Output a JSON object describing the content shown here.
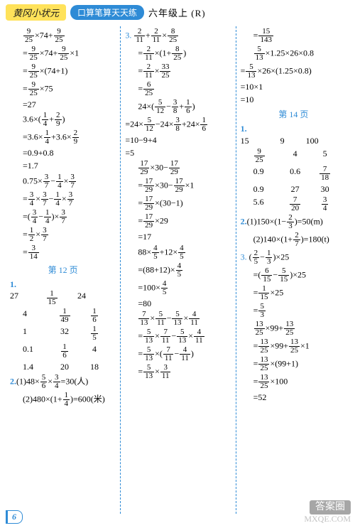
{
  "header": {
    "brand": "黄冈小状元",
    "pill": "口算笔算天天练",
    "grade": "六年级上 (R)"
  },
  "footer": {
    "page": "6"
  },
  "watermark": {
    "line1": "答案圈",
    "line2": "MXQE.COM"
  },
  "pages": {
    "p12": "第 12 页",
    "p14": "第 14 页"
  },
  "col1": {
    "l1a": "×74+",
    "l2a": "×74+",
    "l2b": "×1",
    "l3a": "×(74+1)",
    "l4a": "×75",
    "l5": "=27",
    "l6a": "3.6×(",
    "l6b": "+",
    "l6c": ")",
    "l7a": "=3.6×",
    "l7b": "+3.6×",
    "l8": "=0.9+0.8",
    "l9": "=1.7",
    "l10a": "0.75×",
    "l10b": "−",
    "l10c": "×",
    "l11a": "=",
    "l11b": "×",
    "l11c": "−",
    "l11d": "×",
    "l12a": "=(",
    "l12b": "−",
    "l12c": ")×",
    "l13a": "=",
    "l13b": "×",
    "l14": "=",
    "t1": {
      "a": "27",
      "b": "",
      "c": "24"
    },
    "t2": {
      "a": "4",
      "b": "",
      "c": ""
    },
    "t3": {
      "a": "1",
      "b": "32",
      "c": ""
    },
    "t4": {
      "a": "0.1",
      "b": "",
      "c": "4"
    },
    "t5": {
      "a": "1.4",
      "b": "20",
      "c": "18"
    },
    "q2a_pre": "(1)48×",
    "q2a_mid": "×",
    "q2a_post": "=30(人)",
    "q2b_pre": "(2)480×(1+",
    "q2b_post": ")=600(米)"
  },
  "col2": {
    "l1a": "+",
    "l1b": "×",
    "l2a": "=",
    "l2b": "×(1+",
    "l2c": ")",
    "l3a": "=",
    "l3b": "×",
    "l4": "=",
    "l5a": "24×(",
    "l5b": "−",
    "l5c": "+",
    "l5d": ")",
    "l6a": "=24×",
    "l6b": "−24×",
    "l6c": "+24×",
    "l7": "=10−9+4",
    "l8": "=5",
    "l9a": "×30−",
    "l10a": "=",
    "l10b": "×30−",
    "l10c": "×1",
    "l11a": "=",
    "l11b": "×(30−1)",
    "l12a": "=",
    "l12b": "×29",
    "l13": "=17",
    "l14a": "88×",
    "l14b": "+12×",
    "l15a": "=(88+12)×",
    "l16a": "=100×",
    "l17": "=80",
    "l18a": "×",
    "l18b": "−",
    "l18c": "×",
    "l19a": "=",
    "l19b": "×",
    "l19c": "−",
    "l19d": "×",
    "l20a": "=",
    "l20b": "×(",
    "l20c": "−",
    "l20d": ")",
    "l21a": "=",
    "l21b": "×"
  },
  "col3": {
    "l1": "=",
    "l2a": "×1.25×26×0.8",
    "l3a": "=",
    "l3b": "×26×(1.25×0.8)",
    "l4": "=10×1",
    "l5": "=10",
    "t1": {
      "a": "15",
      "b": "9",
      "c": "100"
    },
    "t2": {
      "a": "",
      "b": "4",
      "c": "5"
    },
    "t3": {
      "a": "0.9",
      "b": "0.6",
      "c": ""
    },
    "t4": {
      "a": "0.9",
      "b": "27",
      "c": "30"
    },
    "t5": {
      "a": "5.6",
      "b": "",
      "c": ""
    },
    "q2a_pre": "(1)150×(1−",
    "q2a_post": ")=50(m)",
    "q2b_pre": "(2)140×(1+",
    "q2b_post": ")=180(t)",
    "l6a": "(",
    "l6b": "−",
    "l6c": ")×25",
    "l7a": "=(",
    "l7b": "−",
    "l7c": ")×25",
    "l8a": "=",
    "l8b": "×25",
    "l9": "=",
    "l10a": "×99+",
    "l11a": "=",
    "l11b": "×99+",
    "l11c": "×1",
    "l12a": "=",
    "l12b": "×(99+1)",
    "l13a": "=",
    "l13b": "×100",
    "l14": "=52"
  },
  "fracs": {
    "9_25": {
      "n": "9",
      "d": "25"
    },
    "1_4": {
      "n": "1",
      "d": "4"
    },
    "2_9": {
      "n": "2",
      "d": "9"
    },
    "3_7": {
      "n": "3",
      "d": "7"
    },
    "3_4": {
      "n": "3",
      "d": "4"
    },
    "1_2": {
      "n": "1",
      "d": "2"
    },
    "3_14": {
      "n": "3",
      "d": "14"
    },
    "1_15": {
      "n": "1",
      "d": "15"
    },
    "1_49": {
      "n": "1",
      "d": "49"
    },
    "1_6": {
      "n": "1",
      "d": "6"
    },
    "1_5": {
      "n": "1",
      "d": "5"
    },
    "5_6": {
      "n": "5",
      "d": "6"
    },
    "2_11": {
      "n": "2",
      "d": "11"
    },
    "8_25": {
      "n": "8",
      "d": "25"
    },
    "33_25": {
      "n": "33",
      "d": "25"
    },
    "6_25": {
      "n": "6",
      "d": "25"
    },
    "5_12": {
      "n": "5",
      "d": "12"
    },
    "3_8": {
      "n": "3",
      "d": "8"
    },
    "17_29": {
      "n": "17",
      "d": "29"
    },
    "4_5": {
      "n": "4",
      "d": "5"
    },
    "7_13": {
      "n": "7",
      "d": "13"
    },
    "5_11": {
      "n": "5",
      "d": "11"
    },
    "5_13": {
      "n": "5",
      "d": "13"
    },
    "4_11": {
      "n": "4",
      "d": "11"
    },
    "7_11": {
      "n": "7",
      "d": "11"
    },
    "3_11": {
      "n": "3",
      "d": "11"
    },
    "15_143": {
      "n": "15",
      "d": "143"
    },
    "7_18": {
      "n": "7",
      "d": "18"
    },
    "7_20": {
      "n": "7",
      "d": "20"
    },
    "2_3": {
      "n": "2",
      "d": "3"
    },
    "2_7": {
      "n": "2",
      "d": "7"
    },
    "2_5": {
      "n": "2",
      "d": "5"
    },
    "1_3": {
      "n": "1",
      "d": "3"
    },
    "6_15": {
      "n": "6",
      "d": "15"
    },
    "5_15": {
      "n": "5",
      "d": "15"
    },
    "5_3": {
      "n": "5",
      "d": "3"
    },
    "13_25": {
      "n": "13",
      "d": "25"
    }
  },
  "labels": {
    "q1": "1.",
    "q2": "2.",
    "q3": "3."
  }
}
